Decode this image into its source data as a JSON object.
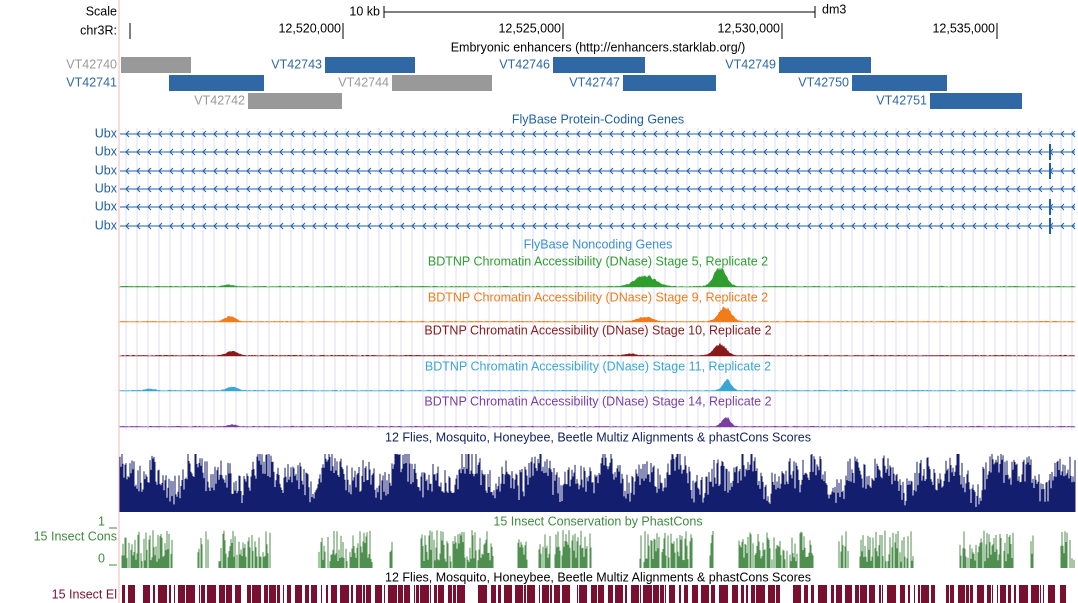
{
  "scale": {
    "label": "Scale",
    "size": "10 kb",
    "assembly": "dm3"
  },
  "ruler": {
    "chrom": "chr3R:",
    "ticks": [
      "12,520,000",
      "12,525,000",
      "12,530,000",
      "12,535,000"
    ]
  },
  "enhancers": {
    "title": "Embryonic enhancers (http://enhancers.starklab.org/)",
    "items": [
      "VT42740",
      "VT42741",
      "VT42742",
      "VT42743",
      "VT42744",
      "VT42746",
      "VT42747",
      "VT42749",
      "VT42750",
      "VT42751"
    ]
  },
  "genes": {
    "title": "FlyBase Protein-Coding Genes",
    "rows": [
      "Ubx",
      "Ubx",
      "Ubx",
      "Ubx",
      "Ubx",
      "Ubx"
    ]
  },
  "noncoding": {
    "title": "FlyBase Noncoding Genes"
  },
  "dnase": [
    "BDTNP Chromatin Accessibility (DNase) Stage 5, Replicate 2",
    "BDTNP Chromatin Accessibility (DNase) Stage 9, Replicate 2",
    "BDTNP Chromatin Accessibility (DNase) Stage 10, Replicate 2",
    "BDTNP Chromatin Accessibility (DNase) Stage 11, Replicate 2",
    "BDTNP Chromatin Accessibility (DNase) Stage 14, Replicate 2"
  ],
  "multiz": {
    "title": "12 Flies, Mosquito, Honeybee, Beetle Multiz Alignments & phastCons Scores"
  },
  "phastcons": {
    "title": "15 Insect Conservation by PhastCons",
    "label": "15 Insect Cons",
    "max": "1",
    "min": "0"
  },
  "elements": {
    "title": "12 Flies, Mosquito, Honeybee, Beetle Multiz Alignments & phastCons Scores",
    "label": "15 Insect El"
  }
}
